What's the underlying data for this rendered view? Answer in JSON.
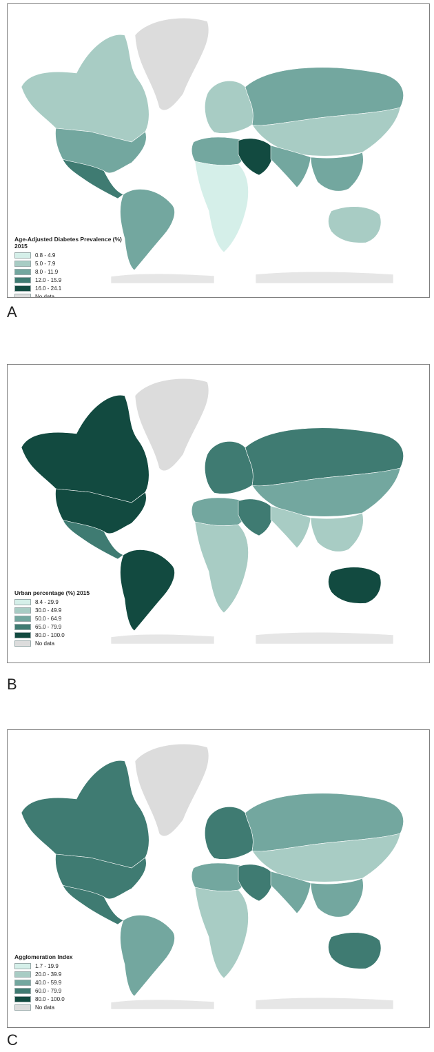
{
  "panels": [
    {
      "letter": "A",
      "legend_title": "Age-Adjusted Diabetes Prevalence (%) 2015",
      "legend": [
        {
          "label": "0.8 - 4.9",
          "color": "#d5efe9"
        },
        {
          "label": "5.0 - 7.9",
          "color": "#a8ccc4"
        },
        {
          "label": "8.0 - 11.9",
          "color": "#73a79f"
        },
        {
          "label": "12.0 - 15.9",
          "color": "#3f7b72"
        },
        {
          "label": "16.0 - 24.1",
          "color": "#124a40"
        },
        {
          "label": "No data",
          "color": "#dcdcdc"
        }
      ]
    },
    {
      "letter": "B",
      "legend_title": "Urban percentage (%) 2015",
      "legend": [
        {
          "label": "8.4 - 29.9",
          "color": "#d5efe9"
        },
        {
          "label": "30.0 - 49.9",
          "color": "#a8ccc4"
        },
        {
          "label": "50.0 - 64.9",
          "color": "#73a79f"
        },
        {
          "label": "65.0 - 79.9",
          "color": "#3f7b72"
        },
        {
          "label": "80.0 - 100.0",
          "color": "#124a40"
        },
        {
          "label": "No data",
          "color": "#dcdcdc"
        }
      ]
    },
    {
      "letter": "C",
      "legend_title": "Agglomeration Index",
      "legend": [
        {
          "label": "1.7 - 19.9",
          "color": "#d5efe9"
        },
        {
          "label": "20.0 - 39.9",
          "color": "#a8ccc4"
        },
        {
          "label": "40.0 - 59.9",
          "color": "#73a79f"
        },
        {
          "label": "60.0 - 79.9",
          "color": "#3f7b72"
        },
        {
          "label": "80.0 - 100.0",
          "color": "#124a40"
        },
        {
          "label": "No data",
          "color": "#dcdcdc"
        }
      ]
    }
  ],
  "map_colors": {
    "A": {
      "north_america": "#a8ccc4",
      "usa": "#73a79f",
      "mexico": "#3f7b72",
      "south_america": "#73a79f",
      "greenland": "#dcdcdc",
      "europe": "#a8ccc4",
      "russia": "#73a79f",
      "africa": "#d5efe9",
      "north_africa": "#73a79f",
      "middle_east": "#124a40",
      "asia": "#a8ccc4",
      "south_asia": "#73a79f",
      "se_asia": "#73a79f",
      "australia": "#a8ccc4",
      "antarctica": "#e6e6e6"
    },
    "B": {
      "north_america": "#124a40",
      "usa": "#124a40",
      "mexico": "#3f7b72",
      "south_america": "#124a40",
      "greenland": "#dcdcdc",
      "europe": "#3f7b72",
      "russia": "#3f7b72",
      "africa": "#a8ccc4",
      "north_africa": "#73a79f",
      "middle_east": "#3f7b72",
      "asia": "#73a79f",
      "south_asia": "#a8ccc4",
      "se_asia": "#a8ccc4",
      "australia": "#124a40",
      "antarctica": "#e6e6e6"
    },
    "C": {
      "north_america": "#3f7b72",
      "usa": "#3f7b72",
      "mexico": "#3f7b72",
      "south_america": "#73a79f",
      "greenland": "#dcdcdc",
      "europe": "#3f7b72",
      "russia": "#73a79f",
      "africa": "#a8ccc4",
      "north_africa": "#73a79f",
      "middle_east": "#3f7b72",
      "asia": "#a8ccc4",
      "south_asia": "#73a79f",
      "se_asia": "#73a79f",
      "australia": "#3f7b72",
      "antarctica": "#e6e6e6"
    }
  }
}
